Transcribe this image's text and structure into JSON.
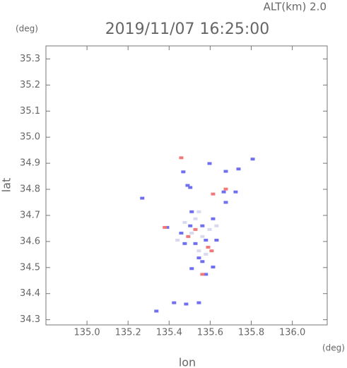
{
  "chart_data": {
    "type": "scatter",
    "title": "2019/11/07 16:25:00",
    "subtitle": "ALT(km) 2.0",
    "x_label": "lon",
    "y_label": "lat",
    "x_unit": "(deg)",
    "y_unit": "(deg)",
    "xlim": [
      134.8,
      136.17
    ],
    "ylim": [
      34.28,
      35.35
    ],
    "xticks": [
      {
        "value": 135,
        "label": "135.0"
      },
      135.2,
      135.4,
      135.6,
      135.8,
      {
        "value": 136,
        "label": "136.0"
      }
    ],
    "yticks": [
      34.3,
      34.4,
      34.5,
      34.6,
      34.7,
      34.8,
      34.9,
      {
        "value": 35,
        "label": "35.0"
      },
      35.1,
      35.2,
      35.3
    ],
    "series": [
      {
        "color": "#6f6ff0",
        "x": [
          135.469,
          135.49,
          135.503,
          135.597,
          135.676,
          135.738,
          135.807,
          135.269,
          135.51,
          135.503,
          135.562,
          135.614,
          135.528,
          135.579,
          135.545,
          135.51,
          135.562,
          135.614,
          135.459,
          135.39,
          135.666,
          135.724,
          135.676,
          135.424,
          135.483,
          135.545,
          135.338,
          135.579,
          135.631,
          135.476
        ],
        "values": [
          34.867,
          34.815,
          34.807,
          34.899,
          34.869,
          34.878,
          34.916,
          34.766,
          34.714,
          34.66,
          34.66,
          34.687,
          34.592,
          34.605,
          34.537,
          34.496,
          34.523,
          34.502,
          34.632,
          34.654,
          34.79,
          34.79,
          34.75,
          34.365,
          34.36,
          34.365,
          34.333,
          34.474,
          34.605,
          34.592
        ]
      },
      {
        "color": "#f07a7a",
        "x": [
          135.614,
          135.676,
          135.59,
          135.493,
          135.528,
          135.607,
          135.379,
          135.562,
          135.459
        ],
        "values": [
          34.782,
          34.801,
          34.578,
          34.619,
          34.646,
          34.564,
          34.654,
          34.474,
          34.921
        ]
      },
      {
        "color": "#d8d8ee",
        "x": [
          135.51,
          135.562,
          135.476,
          135.597,
          135.545,
          135.579,
          135.528,
          135.631,
          135.441,
          135.545
        ],
        "values": [
          34.632,
          34.619,
          34.673,
          34.646,
          34.564,
          34.551,
          34.687,
          34.66,
          34.605,
          34.714
        ]
      }
    ]
  }
}
